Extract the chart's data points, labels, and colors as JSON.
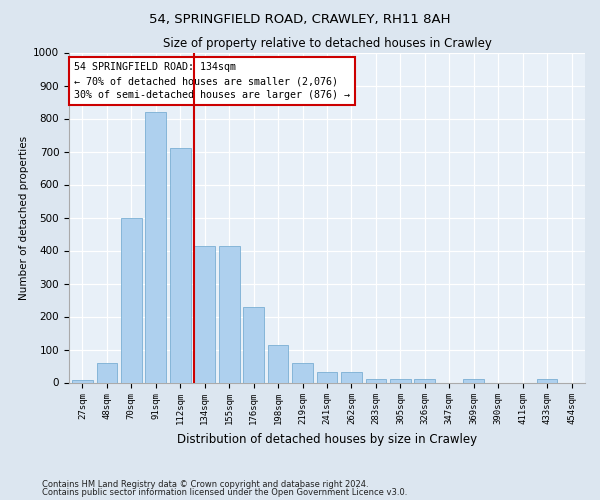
{
  "title1": "54, SPRINGFIELD ROAD, CRAWLEY, RH11 8AH",
  "title2": "Size of property relative to detached houses in Crawley",
  "xlabel": "Distribution of detached houses by size in Crawley",
  "ylabel": "Number of detached properties",
  "categories": [
    "27sqm",
    "48sqm",
    "70sqm",
    "91sqm",
    "112sqm",
    "134sqm",
    "155sqm",
    "176sqm",
    "198sqm",
    "219sqm",
    "241sqm",
    "262sqm",
    "283sqm",
    "305sqm",
    "326sqm",
    "347sqm",
    "369sqm",
    "390sqm",
    "411sqm",
    "433sqm",
    "454sqm"
  ],
  "values": [
    8,
    60,
    500,
    820,
    710,
    415,
    415,
    230,
    115,
    60,
    32,
    33,
    10,
    10,
    10,
    0,
    10,
    0,
    0,
    10,
    0
  ],
  "bar_color": "#aed0ee",
  "bar_edge_color": "#7aafd4",
  "vline_color": "#cc0000",
  "annotation_text": "54 SPRINGFIELD ROAD: 134sqm\n← 70% of detached houses are smaller (2,076)\n30% of semi-detached houses are larger (876) →",
  "annotation_box_color": "#ffffff",
  "annotation_box_edge": "#cc0000",
  "footnote1": "Contains HM Land Registry data © Crown copyright and database right 2024.",
  "footnote2": "Contains public sector information licensed under the Open Government Licence v3.0.",
  "ylim": [
    0,
    1000
  ],
  "yticks": [
    0,
    100,
    200,
    300,
    400,
    500,
    600,
    700,
    800,
    900,
    1000
  ],
  "bg_color": "#dce6f0",
  "plot_bg_color": "#e8f0f8"
}
